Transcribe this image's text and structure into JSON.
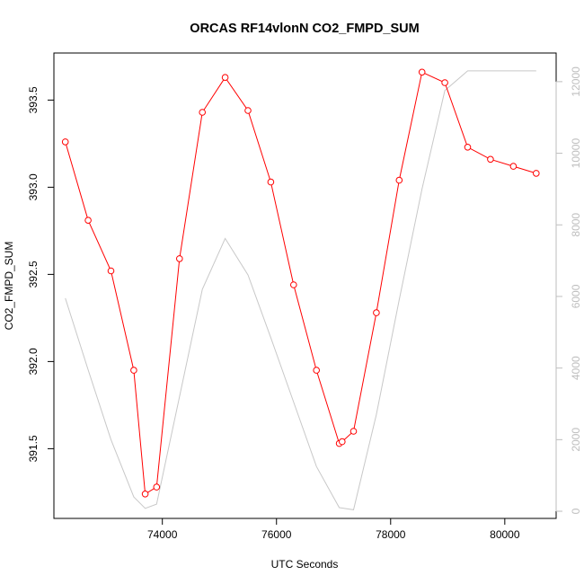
{
  "chart_data": {
    "type": "line",
    "title": "ORCAS RF14vlonN CO2_FMPD_SUM",
    "xlabel": "UTC Seconds",
    "ylabel": "CO2_FMPD_SUM",
    "xlim": [
      72100,
      80900
    ],
    "ylim": [
      391.1,
      393.77
    ],
    "x_ticks": [
      74000,
      76000,
      78000,
      80000
    ],
    "y_ticks": [
      391.5,
      392.0,
      392.5,
      393.0,
      393.5
    ],
    "y_tick_labels": [
      "391.5",
      "392.0",
      "392.5",
      "393.0",
      "393.5"
    ],
    "y2lim": [
      -200,
      12800
    ],
    "y2_ticks": [
      0,
      2000,
      4000,
      6000,
      8000,
      10000,
      12000
    ],
    "colors": {
      "primary": "#ff0000",
      "secondary": "#c8c8c8",
      "right_axis": "#bebebe"
    },
    "series": [
      {
        "axis": "left",
        "style": "line+circles",
        "x": [
          72300,
          72700,
          73100,
          73500,
          73700,
          73900,
          74300,
          74700,
          75100,
          75500,
          75900,
          76300,
          76700,
          77100,
          77150,
          77350,
          77750,
          78150,
          78550,
          78950,
          79350,
          79750,
          80150,
          80550
        ],
        "y": [
          393.26,
          392.81,
          392.52,
          391.95,
          391.24,
          391.28,
          392.59,
          393.43,
          393.63,
          393.44,
          393.03,
          392.44,
          391.95,
          391.53,
          391.54,
          391.6,
          392.28,
          393.04,
          393.66,
          393.6,
          393.23,
          393.16,
          393.12,
          393.08
        ]
      },
      {
        "axis": "right",
        "style": "line",
        "x": [
          72300,
          72700,
          73100,
          73500,
          73700,
          73900,
          74300,
          74700,
          75100,
          75500,
          75900,
          76300,
          76700,
          77100,
          77350,
          77750,
          78150,
          78550,
          78950,
          79350,
          79750,
          80150,
          80550
        ],
        "y": [
          5950,
          3950,
          2000,
          400,
          80,
          200,
          3200,
          6200,
          7620,
          6600,
          4850,
          3050,
          1250,
          100,
          40,
          2700,
          5900,
          9000,
          11750,
          12300,
          12300,
          12300,
          12300
        ]
      }
    ]
  }
}
